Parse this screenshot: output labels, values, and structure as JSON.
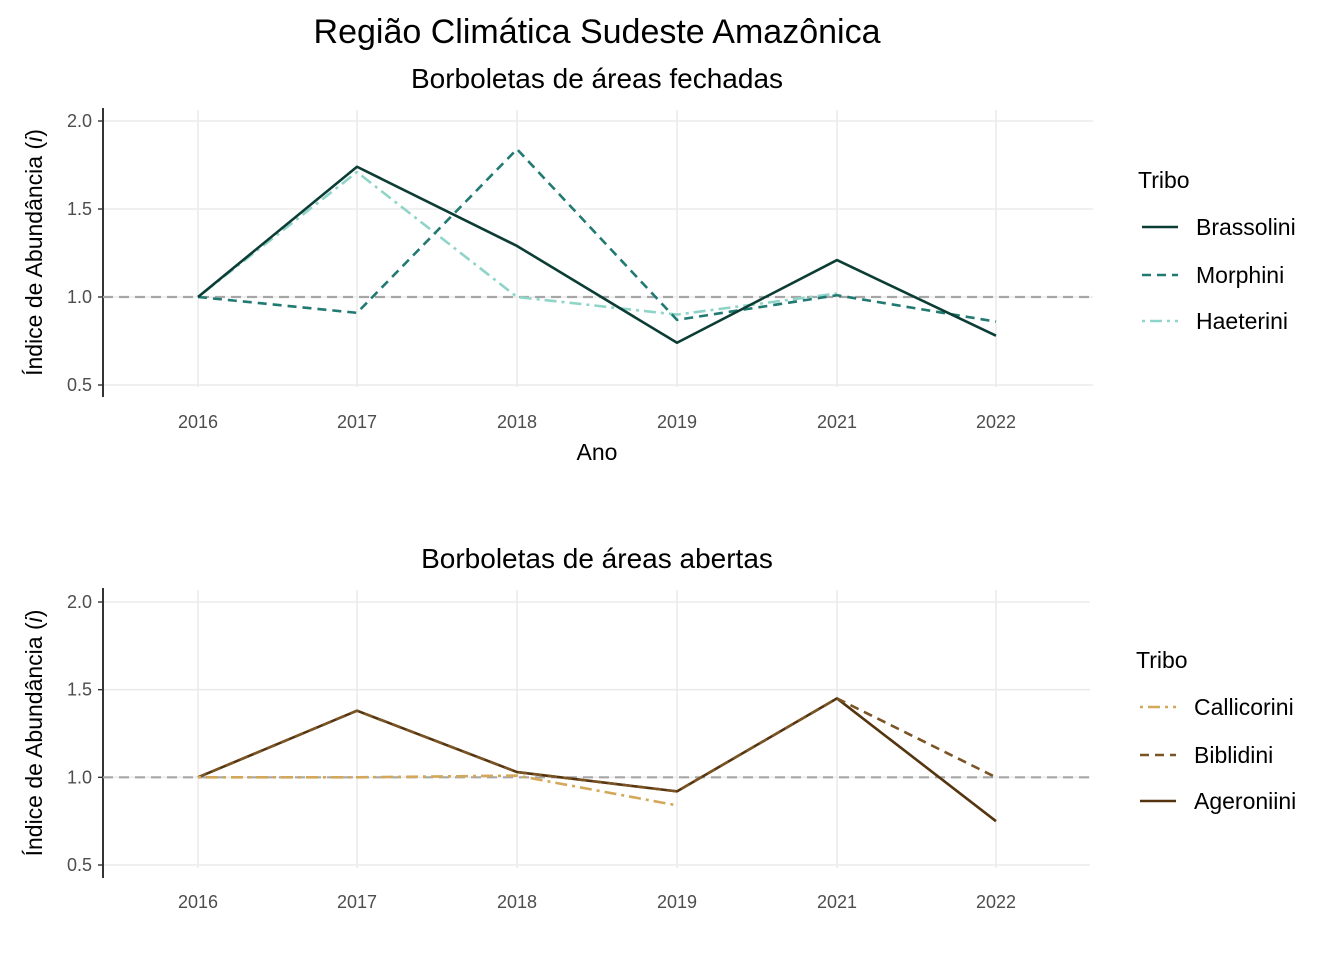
{
  "title": "Região Climática Sudeste Amazônica",
  "chart_data": [
    {
      "type": "line",
      "subtitle": "Borboletas de áreas fechadas",
      "xlabel": "Ano",
      "ylabel": "Índice de Abundância (",
      "ylabel_italic": "i",
      "ylabel_close": ")",
      "categories": [
        "2016",
        "2017",
        "2018",
        "2019",
        "2021",
        "2022"
      ],
      "ylim": [
        0.45,
        2.08
      ],
      "yticks": [
        0.5,
        1.0,
        1.5,
        2.0
      ],
      "ytick_labels": [
        "0.5",
        "1.0",
        "1.5",
        "2.0"
      ],
      "reference_line": 1.0,
      "grid": true,
      "legend_title": "Tribo",
      "legend_position": "right",
      "series": [
        {
          "name": "Brassolini",
          "values": [
            1.0,
            1.74,
            1.29,
            0.74,
            1.21,
            0.78
          ],
          "color": "#0b3d35",
          "dash": "solid"
        },
        {
          "name": "Morphini",
          "values": [
            1.0,
            0.91,
            1.84,
            0.87,
            1.01,
            0.86
          ],
          "color": "#217a72",
          "dash": "dashed"
        },
        {
          "name": "Haeterini",
          "values": [
            1.0,
            1.71,
            1.0,
            0.9,
            1.02,
            null
          ],
          "color": "#8fd4c8",
          "dash": "dotdash"
        }
      ]
    },
    {
      "type": "line",
      "subtitle": "Borboletas de áreas abertas",
      "xlabel": "",
      "ylabel": "Índice de Abundância (",
      "ylabel_italic": "i",
      "ylabel_close": ")",
      "categories": [
        "2016",
        "2017",
        "2018",
        "2019",
        "2021",
        "2022"
      ],
      "ylim": [
        0.45,
        2.08
      ],
      "yticks": [
        0.5,
        1.0,
        1.5,
        2.0
      ],
      "ytick_labels": [
        "0.5",
        "1.0",
        "1.5",
        "2.0"
      ],
      "reference_line": 1.0,
      "grid": true,
      "legend_title": "Tribo",
      "legend_position": "right",
      "series": [
        {
          "name": "Callicorini",
          "values": [
            1.0,
            1.0,
            1.01,
            0.84,
            null,
            null
          ],
          "color": "#d4a85a",
          "dash": "dotdash"
        },
        {
          "name": "Biblidini",
          "values": [
            1.0,
            1.38,
            1.03,
            0.92,
            1.45,
            1.0
          ],
          "color": "#7a5424",
          "dash": "dashed"
        },
        {
          "name": "Ageroniini",
          "values": [
            1.0,
            1.38,
            1.03,
            0.92,
            1.45,
            0.75
          ],
          "color": "#54350f",
          "dash": "solid"
        }
      ]
    }
  ]
}
